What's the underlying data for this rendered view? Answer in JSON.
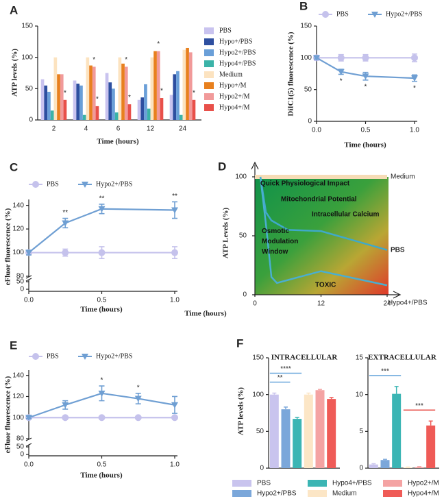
{
  "chart_data": [
    {
      "type": "bar",
      "panel": "A",
      "ylabel": "ATP levels (%)",
      "xlabel": "Time (hours)",
      "categories": [
        "2",
        "4",
        "6",
        "12",
        "24"
      ],
      "ylim": [
        0,
        150
      ],
      "yticks": [
        0,
        50,
        100,
        150
      ],
      "legend": "right",
      "series": [
        {
          "name": "PBS",
          "color": "#c9c3ef",
          "values": [
            65,
            63,
            75,
            32,
            40
          ]
        },
        {
          "name": "Hypo+/PBS",
          "color": "#2e4fa0",
          "values": [
            55,
            58,
            60,
            36,
            73
          ]
        },
        {
          "name": "Hypo2+/PBS",
          "color": "#6a9fd8",
          "values": [
            45,
            55,
            50,
            57,
            78
          ]
        },
        {
          "name": "Hypo4+/PBS",
          "color": "#3bb3a8",
          "values": [
            15,
            8,
            12,
            18,
            8
          ]
        },
        {
          "name": "Medium",
          "color": "#fce3c0",
          "values": [
            100,
            100,
            100,
            100,
            112
          ]
        },
        {
          "name": "Hypo+/M",
          "color": "#e8801e",
          "values": [
            73,
            87,
            90,
            110,
            115
          ]
        },
        {
          "name": "Hypo2+/M",
          "color": "#f19a9a",
          "values": [
            73,
            85,
            85,
            110,
            108
          ],
          "significance": [
            null,
            "*",
            "*",
            "*",
            null
          ]
        },
        {
          "name": "Hypo4+/M",
          "color": "#e8504a",
          "values": [
            32,
            22,
            25,
            35,
            32
          ],
          "significance": [
            "*",
            "*",
            "*",
            "*",
            "*"
          ]
        }
      ]
    },
    {
      "type": "line",
      "panel": "B",
      "ylabel": "DiIC1(5) fluorescence (%)",
      "xlabel": "Time (hours)",
      "x": [
        0,
        0.25,
        0.5,
        1
      ],
      "xlim": [
        0,
        1
      ],
      "xticks": [
        {
          "value": 0,
          "label": "0.0"
        },
        {
          "value": 0.5,
          "label": "0.5"
        },
        {
          "value": 1,
          "label": "1.0"
        }
      ],
      "ylim": [
        0,
        150
      ],
      "yticks": [
        0,
        50,
        100,
        150
      ],
      "legend": "top",
      "series": [
        {
          "name": "PBS",
          "color": "#c5c2ec",
          "marker": "circle",
          "values": [
            100,
            100,
            100,
            100
          ],
          "errors": [
            4,
            5,
            5,
            6
          ]
        },
        {
          "name": "Hypo2+/PBS",
          "color": "#6f9fd3",
          "marker": "triangle",
          "values": [
            100,
            78,
            71,
            68
          ],
          "errors": [
            2,
            4,
            6,
            5
          ],
          "significance": [
            null,
            "*",
            "*",
            "*"
          ]
        }
      ]
    },
    {
      "type": "line",
      "panel": "C",
      "ylabel": "eFluor fluorescence (%)",
      "xlabel": "Time (hours)",
      "x": [
        0,
        0.25,
        0.5,
        1
      ],
      "xlim": [
        0,
        1
      ],
      "xticks": [
        {
          "value": 0,
          "label": "0.0"
        },
        {
          "value": 0.5,
          "label": "0.5"
        },
        {
          "value": 1,
          "label": "1.0"
        }
      ],
      "ylim": [
        80,
        145
      ],
      "yticks": [
        80,
        100,
        120,
        140
      ],
      "lower_yticks": [
        0,
        50
      ],
      "legend": "top",
      "series": [
        {
          "name": "PBS",
          "color": "#c5c2ec",
          "marker": "circle",
          "values": [
            100,
            100,
            100,
            100
          ],
          "errors": [
            1,
            3,
            5,
            5
          ]
        },
        {
          "name": "Hypo2+/PBS",
          "color": "#6f9fd3",
          "marker": "triangle",
          "values": [
            100,
            125,
            137,
            136
          ],
          "errors": [
            2,
            4,
            4,
            7
          ],
          "significance": [
            null,
            "**",
            "**",
            "**"
          ]
        }
      ]
    },
    {
      "type": "schematic",
      "panel": "D",
      "ylabel": "ATP Levels (%)",
      "xlabel": "Time (hours)",
      "xlim": [
        0,
        24
      ],
      "xticks": [
        0,
        12,
        24
      ],
      "ylim": [
        0,
        100
      ],
      "yticks": [
        0,
        50,
        100
      ],
      "annotations": [
        "Quick Physiological Impact",
        "Mitochondrial Potential",
        "Intracellular Calcium",
        "Osmotic Modulation Window",
        "TOXIC"
      ],
      "series": [
        {
          "name": "Medium",
          "color": "#f6dcb6",
          "x": [
            0,
            24
          ],
          "y": [
            100,
            100
          ]
        },
        {
          "name": "PBS",
          "color": "#3fa9c9",
          "x": [
            1,
            2,
            3,
            6,
            12,
            24
          ],
          "y": [
            100,
            70,
            63,
            55,
            54,
            38
          ]
        },
        {
          "name": "Hypo4+/PBS",
          "color": "#4aaed0",
          "x": [
            1,
            2,
            3,
            4,
            12,
            24
          ],
          "y": [
            100,
            60,
            15,
            10,
            20,
            8
          ]
        }
      ]
    },
    {
      "type": "line",
      "panel": "E",
      "ylabel": "eFluor fluorescence (%)",
      "xlabel": "Time (hours)",
      "x": [
        0,
        0.25,
        0.5,
        0.75,
        1
      ],
      "xlim": [
        0,
        1
      ],
      "xticks": [
        {
          "value": 0,
          "label": "0.0"
        },
        {
          "value": 0.5,
          "label": "0.5"
        },
        {
          "value": 1,
          "label": "1.0"
        }
      ],
      "ylim": [
        80,
        145
      ],
      "yticks": [
        80,
        100,
        120,
        140
      ],
      "lower_yticks": [
        0,
        50
      ],
      "legend": "top",
      "series": [
        {
          "name": "PBS",
          "color": "#c5c2ec",
          "marker": "circle",
          "values": [
            100,
            100,
            100,
            100,
            100
          ],
          "errors": [
            1,
            1,
            1,
            1,
            1
          ]
        },
        {
          "name": "Hypo2+/PBS",
          "color": "#6f9fd3",
          "marker": "triangle",
          "values": [
            100,
            112,
            123,
            118,
            112
          ],
          "errors": [
            1,
            4,
            7,
            5,
            8
          ],
          "significance": [
            null,
            null,
            "*",
            "*",
            null
          ]
        }
      ]
    },
    {
      "type": "category_bar",
      "panel": "F",
      "title": "INTRACELLULAR",
      "ylabel": "ATP levels (%)",
      "categories": [
        "PBS",
        "Hypo2+/PBS",
        "Hypo4+/PBS",
        "Medium",
        "Hypo2+/M",
        "Hypo4+/M"
      ],
      "colors": [
        "#c9c4ee",
        "#7ba7da",
        "#3bb5b4",
        "#fce6c6",
        "#f4a3a3",
        "#ef5b57"
      ],
      "values": [
        100,
        80,
        67,
        100,
        106,
        94
      ],
      "errors": [
        2,
        3,
        2,
        2,
        1,
        2
      ],
      "ylim": [
        0,
        150
      ],
      "yticks": [
        0,
        50,
        100,
        150
      ],
      "legend": "bottom",
      "comparisons": [
        {
          "from": "PBS",
          "to": "Hypo2+/PBS",
          "label": "**",
          "color": "#6aa7dc"
        },
        {
          "from": "PBS",
          "to": "Hypo4+/PBS",
          "label": "****",
          "color": "#6aa7dc"
        }
      ]
    },
    {
      "type": "category_bar",
      "title": "EXTRACELLULAR",
      "categories": [
        "PBS",
        "Hypo2+/PBS",
        "Hypo4+/PBS",
        "Medium",
        "Hypo2+/M",
        "Hypo4+/M"
      ],
      "colors": [
        "#c9c4ee",
        "#7ba7da",
        "#3bb5b4",
        "#fce6c6",
        "#f4a3a3",
        "#ef5b57"
      ],
      "values": [
        0.5,
        1.1,
        10.1,
        0.1,
        0.15,
        5.8
      ],
      "errors": [
        0.1,
        0.1,
        1.0,
        0.05,
        0.05,
        0.6
      ],
      "ylim": [
        0,
        15
      ],
      "yticks": [
        0,
        5,
        10,
        15
      ],
      "comparisons": [
        {
          "from": "PBS",
          "to": "Hypo4+/PBS",
          "label": "***",
          "color": "#6aa7dc"
        },
        {
          "from": "Medium",
          "to": "Hypo4+/M",
          "label": "***",
          "color": "#e8504a"
        }
      ]
    }
  ]
}
